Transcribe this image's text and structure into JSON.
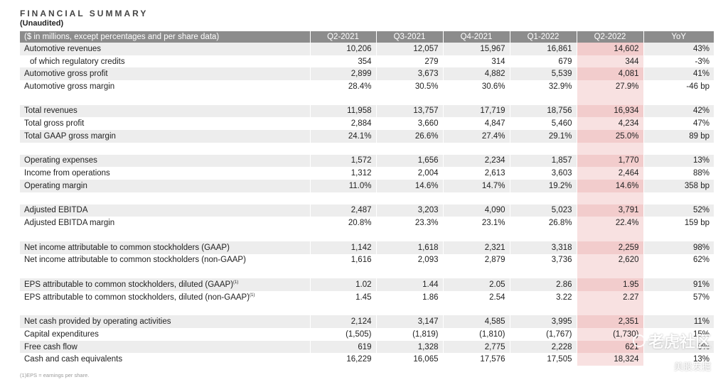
{
  "title": "FINANCIAL SUMMARY",
  "subtitle": "(Unaudited)",
  "header": [
    "($ in millions, except percentages and per share data)",
    "Q2-2021",
    "Q3-2021",
    "Q4-2021",
    "Q1-2022",
    "Q2-2022",
    "YoY"
  ],
  "highlight_color": "#f2cccc",
  "header_color": "#8c8c8c",
  "rows": [
    {
      "type": "data",
      "label": "Automotive revenues",
      "values": [
        "10,206",
        "12,057",
        "15,967",
        "16,861",
        "14,602",
        "43%"
      ]
    },
    {
      "type": "data",
      "label": "of which regulatory credits",
      "indent": true,
      "values": [
        "354",
        "279",
        "314",
        "679",
        "344",
        "-3%"
      ]
    },
    {
      "type": "data",
      "label": "Automotive gross profit",
      "values": [
        "2,899",
        "3,673",
        "4,882",
        "5,539",
        "4,081",
        "41%"
      ]
    },
    {
      "type": "data",
      "label": "Automotive gross margin",
      "values": [
        "28.4%",
        "30.5%",
        "30.6%",
        "32.9%",
        "27.9%",
        "-46 bp"
      ]
    },
    {
      "type": "spacer"
    },
    {
      "type": "data",
      "label": "Total revenues",
      "values": [
        "11,958",
        "13,757",
        "17,719",
        "18,756",
        "16,934",
        "42%"
      ]
    },
    {
      "type": "data",
      "label": "Total gross profit",
      "values": [
        "2,884",
        "3,660",
        "4,847",
        "5,460",
        "4,234",
        "47%"
      ]
    },
    {
      "type": "data",
      "label": "Total GAAP gross margin",
      "values": [
        "24.1%",
        "26.6%",
        "27.4%",
        "29.1%",
        "25.0%",
        "89 bp"
      ]
    },
    {
      "type": "spacer"
    },
    {
      "type": "data",
      "label": "Operating expenses",
      "values": [
        "1,572",
        "1,656",
        "2,234",
        "1,857",
        "1,770",
        "13%"
      ]
    },
    {
      "type": "data",
      "label": "Income from operations",
      "values": [
        "1,312",
        "2,004",
        "2,613",
        "3,603",
        "2,464",
        "88%"
      ]
    },
    {
      "type": "data",
      "label": "Operating margin",
      "values": [
        "11.0%",
        "14.6%",
        "14.7%",
        "19.2%",
        "14.6%",
        "358 bp"
      ]
    },
    {
      "type": "spacer"
    },
    {
      "type": "data",
      "label": "Adjusted EBITDA",
      "values": [
        "2,487",
        "3,203",
        "4,090",
        "5,023",
        "3,791",
        "52%"
      ]
    },
    {
      "type": "data",
      "label": "Adjusted EBITDA margin",
      "values": [
        "20.8%",
        "23.3%",
        "23.1%",
        "26.8%",
        "22.4%",
        "159 bp"
      ]
    },
    {
      "type": "spacer"
    },
    {
      "type": "data",
      "label": "Net income attributable to common stockholders (GAAP)",
      "values": [
        "1,142",
        "1,618",
        "2,321",
        "3,318",
        "2,259",
        "98%"
      ]
    },
    {
      "type": "data",
      "label": "Net income attributable to common stockholders (non-GAAP)",
      "values": [
        "1,616",
        "2,093",
        "2,879",
        "3,736",
        "2,620",
        "62%"
      ]
    },
    {
      "type": "spacer"
    },
    {
      "type": "data",
      "label": "EPS attributable to common stockholders, diluted (GAAP)",
      "sup": "(1)",
      "values": [
        "1.02",
        "1.44",
        "2.05",
        "2.86",
        "1.95",
        "91%"
      ]
    },
    {
      "type": "data",
      "label": "EPS attributable to common stockholders, diluted (non-GAAP)",
      "sup": "(1)",
      "values": [
        "1.45",
        "1.86",
        "2.54",
        "3.22",
        "2.27",
        "57%"
      ]
    },
    {
      "type": "spacer"
    },
    {
      "type": "data",
      "label": "Net cash provided by operating activities",
      "values": [
        "2,124",
        "3,147",
        "4,585",
        "3,995",
        "2,351",
        "11%"
      ]
    },
    {
      "type": "data",
      "label": "Capital expenditures",
      "values": [
        "(1,505)",
        "(1,819)",
        "(1,810)",
        "(1,767)",
        "(1,730)",
        "15%"
      ]
    },
    {
      "type": "data",
      "label": "Free cash flow",
      "values": [
        "619",
        "1,328",
        "2,775",
        "2,228",
        "621",
        "0%"
      ]
    },
    {
      "type": "data",
      "label": "Cash and cash equivalents",
      "values": [
        "16,229",
        "16,065",
        "17,576",
        "17,505",
        "18,324",
        "13%"
      ]
    }
  ],
  "footnote": "(1)EPS = earnings per share.",
  "watermark": {
    "line1": "老虎社区",
    "line2": "美股发掘"
  }
}
